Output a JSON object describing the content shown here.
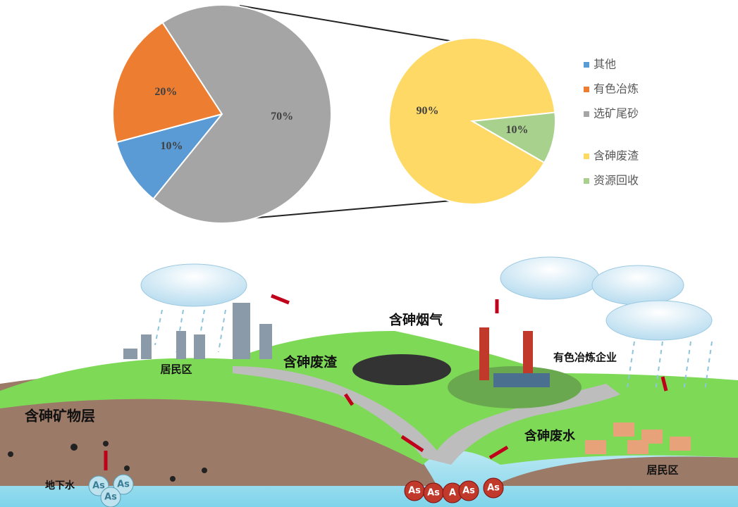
{
  "chart_data": [
    {
      "type": "pie",
      "categories": [
        "其他",
        "有色冶炼",
        "选矿尾砂"
      ],
      "values": [
        10,
        20,
        70
      ],
      "value_labels": [
        "10%",
        "20%",
        "70%"
      ],
      "colors": [
        "#5b9bd5",
        "#ed7d31",
        "#a5a5a5"
      ]
    },
    {
      "type": "pie",
      "categories": [
        "含砷废渣",
        "资源回收"
      ],
      "values": [
        90,
        10
      ],
      "value_labels": [
        "90%",
        "10%"
      ],
      "colors": [
        "#ffd966",
        "#a9d18e"
      ]
    }
  ],
  "illustration": {
    "labels": [
      "居民区",
      "含砷废渣",
      "含砷烟气",
      "有色冶炼企业",
      "含砷矿物层",
      "含砷废水",
      "地下水",
      "居民区"
    ],
    "as_labels": [
      "As",
      "As",
      "As",
      "As",
      "As",
      "A",
      "As",
      "As"
    ]
  }
}
